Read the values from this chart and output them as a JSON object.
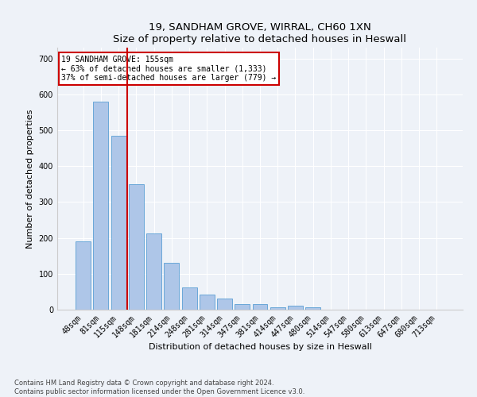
{
  "title1": "19, SANDHAM GROVE, WIRRAL, CH60 1XN",
  "title2": "Size of property relative to detached houses in Heswall",
  "xlabel": "Distribution of detached houses by size in Heswall",
  "ylabel": "Number of detached properties",
  "categories": [
    "48sqm",
    "81sqm",
    "115sqm",
    "148sqm",
    "181sqm",
    "214sqm",
    "248sqm",
    "281sqm",
    "314sqm",
    "347sqm",
    "381sqm",
    "414sqm",
    "447sqm",
    "480sqm",
    "514sqm",
    "547sqm",
    "580sqm",
    "613sqm",
    "647sqm",
    "680sqm",
    "713sqm"
  ],
  "values": [
    190,
    580,
    485,
    350,
    213,
    130,
    63,
    43,
    30,
    15,
    15,
    7,
    12,
    6,
    0,
    0,
    0,
    0,
    0,
    0,
    0
  ],
  "bar_color": "#aec6e8",
  "bar_edgecolor": "#5a9fd4",
  "vline_color": "#cc0000",
  "vline_pos": 3.0,
  "annotation_text": "19 SANDHAM GROVE: 155sqm\n← 63% of detached houses are smaller (1,333)\n37% of semi-detached houses are larger (779) →",
  "annotation_box_color": "#ffffff",
  "annotation_box_edgecolor": "#cc0000",
  "ylim": [
    0,
    730
  ],
  "yticks": [
    0,
    100,
    200,
    300,
    400,
    500,
    600,
    700
  ],
  "footer1": "Contains HM Land Registry data © Crown copyright and database right 2024.",
  "footer2": "Contains public sector information licensed under the Open Government Licence v3.0.",
  "bg_color": "#eef2f8",
  "plot_bg_color": "#eef2f8",
  "grid_color": "#ffffff",
  "title_fontsize": 9.5,
  "axis_label_fontsize": 8,
  "tick_fontsize": 7,
  "annotation_fontsize": 7
}
